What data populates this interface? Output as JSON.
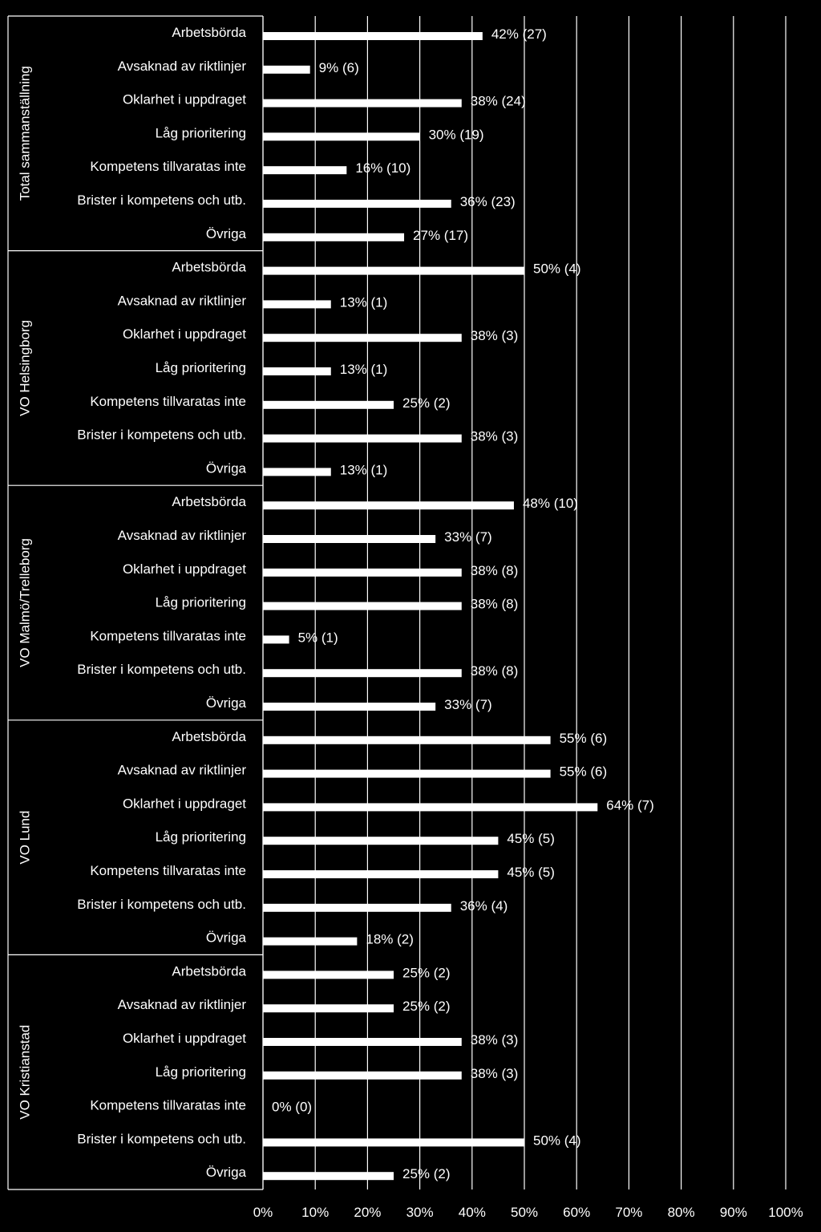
{
  "chart_data": {
    "type": "bar",
    "orientation": "horizontal",
    "xlim": [
      0,
      100
    ],
    "x_ticks": [
      "0%",
      "10%",
      "20%",
      "30%",
      "40%",
      "50%",
      "60%",
      "70%",
      "80%",
      "90%",
      "100%"
    ],
    "grid": true,
    "legend": "none",
    "colors": {
      "background": "#000000",
      "bar": "#ffffff",
      "text": "#ffffff",
      "grid": "#ffffff"
    },
    "groups": [
      {
        "name": "Total sammanställning",
        "categories": [
          "Arbetsbörda",
          "Avsaknad av riktlinjer",
          "Oklarhet i uppdraget",
          "Låg prioritering",
          "Kompetens tillvaratas inte",
          "Brister i kompetens och utb.",
          "Övriga"
        ],
        "values": [
          42,
          9,
          38,
          30,
          16,
          36,
          27
        ],
        "labels": [
          "42% (27)",
          "9% (6)",
          "38% (24)",
          "30% (19)",
          "16% (10)",
          "36% (23)",
          "27% (17)"
        ]
      },
      {
        "name": "VO Helsingborg",
        "categories": [
          "Arbetsbörda",
          "Avsaknad av riktlinjer",
          "Oklarhet i uppdraget",
          "Låg prioritering",
          "Kompetens tillvaratas inte",
          "Brister i kompetens och utb.",
          "Övriga"
        ],
        "values": [
          50,
          13,
          38,
          13,
          25,
          38,
          13
        ],
        "labels": [
          "50% (4)",
          "13% (1)",
          "38% (3)",
          "13% (1)",
          "25% (2)",
          "38% (3)",
          "13% (1)"
        ]
      },
      {
        "name": "VO Malmö/Trelleborg",
        "categories": [
          "Arbetsbörda",
          "Avsaknad av riktlinjer",
          "Oklarhet i uppdraget",
          "Låg prioritering",
          "Kompetens tillvaratas inte",
          "Brister i kompetens och utb.",
          "Övriga"
        ],
        "values": [
          48,
          33,
          38,
          38,
          5,
          38,
          33
        ],
        "labels": [
          "48% (10)",
          "33% (7)",
          "38% (8)",
          "38% (8)",
          "5% (1)",
          "38% (8)",
          "33% (7)"
        ]
      },
      {
        "name": "VO Lund",
        "categories": [
          "Arbetsbörda",
          "Avsaknad av riktlinjer",
          "Oklarhet i uppdraget",
          "Låg prioritering",
          "Kompetens tillvaratas inte",
          "Brister i kompetens och utb.",
          "Övriga"
        ],
        "values": [
          55,
          55,
          64,
          45,
          45,
          36,
          18
        ],
        "labels": [
          "55% (6)",
          "55% (6)",
          "64% (7)",
          "45% (5)",
          "45% (5)",
          "36% (4)",
          "18% (2)"
        ]
      },
      {
        "name": "VO Kristianstad",
        "categories": [
          "Arbetsbörda",
          "Avsaknad av riktlinjer",
          "Oklarhet i uppdraget",
          "Låg prioritering",
          "Kompetens tillvaratas inte",
          "Brister i kompetens och utb.",
          "Övriga"
        ],
        "values": [
          25,
          25,
          38,
          38,
          0,
          50,
          25
        ],
        "labels": [
          "25% (2)",
          "25% (2)",
          "38% (3)",
          "38% (3)",
          "0% (0)",
          "50% (4)",
          "25% (2)"
        ]
      }
    ]
  }
}
